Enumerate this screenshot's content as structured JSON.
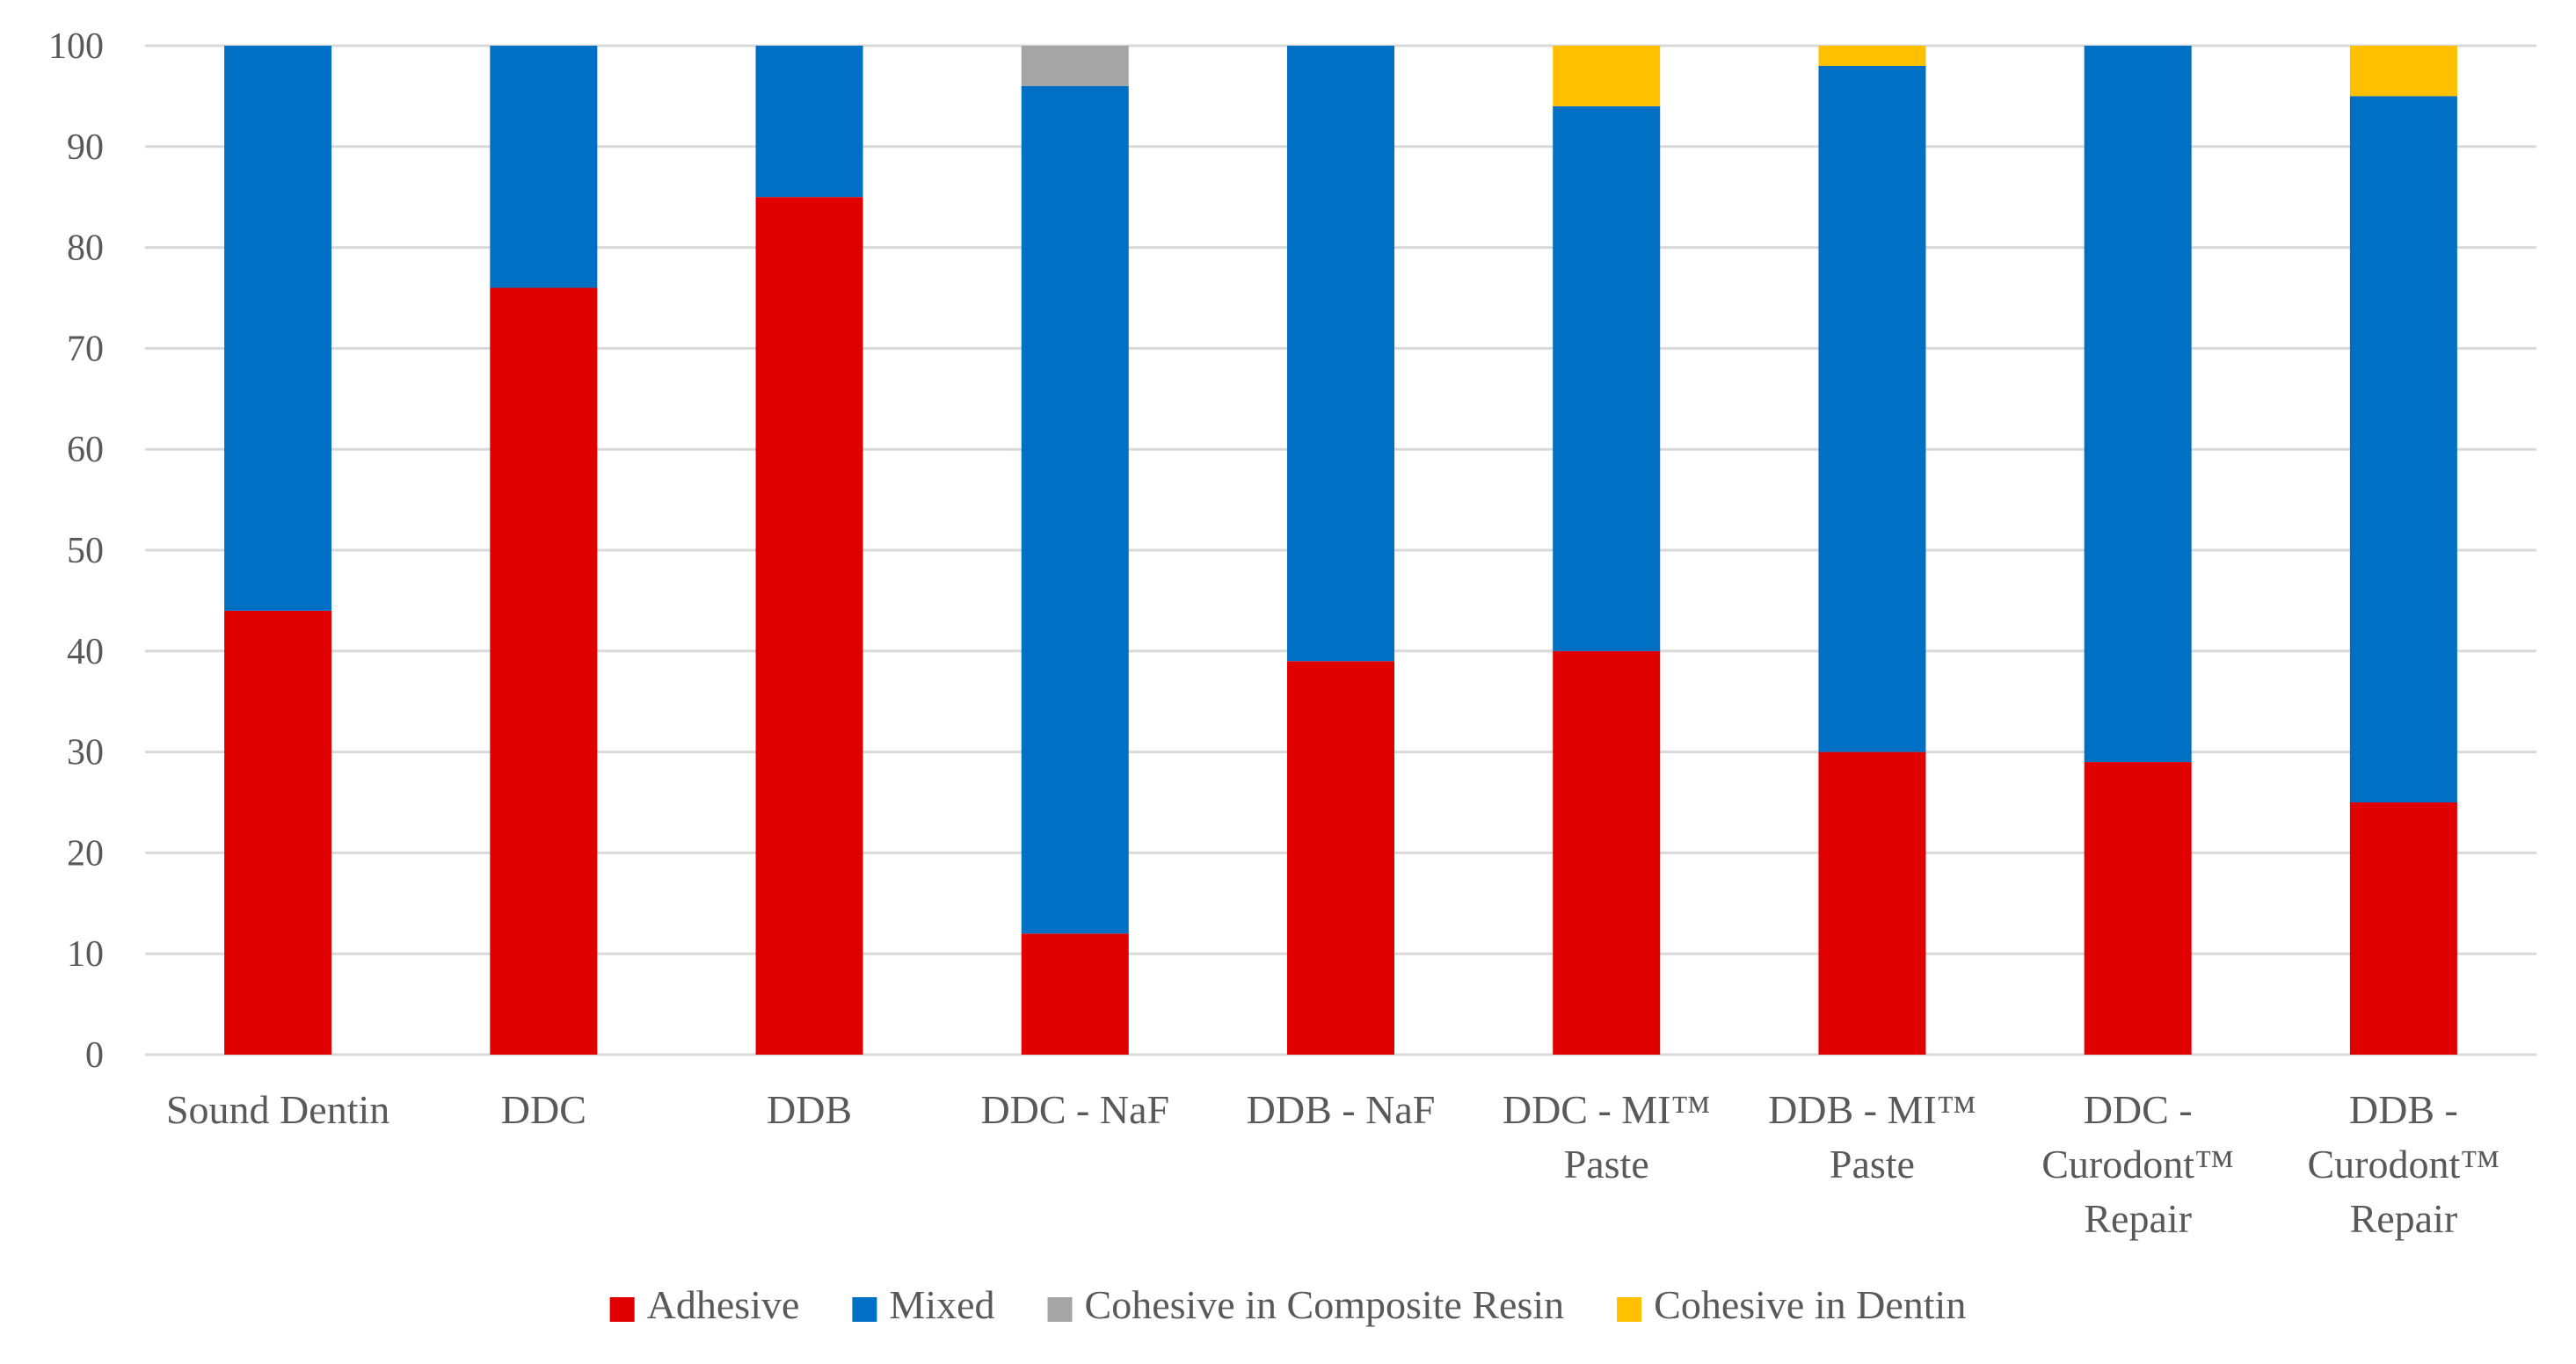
{
  "chart_data": {
    "type": "bar",
    "stacked": true,
    "title": "",
    "xlabel": "",
    "ylabel": "",
    "ylim": [
      0,
      100
    ],
    "yticks": [
      0,
      10,
      20,
      30,
      40,
      50,
      60,
      70,
      80,
      90,
      100
    ],
    "grid": true,
    "legend_position": "bottom",
    "categories": [
      [
        "Sound Dentin"
      ],
      [
        "DDC"
      ],
      [
        "DDB"
      ],
      [
        "DDC - NaF"
      ],
      [
        "DDB - NaF"
      ],
      [
        "DDC - MI™",
        "Paste"
      ],
      [
        "DDB - MI™",
        "Paste"
      ],
      [
        "DDC -",
        "Curodont™",
        "Repair"
      ],
      [
        "DDB -",
        "Curodont™",
        "Repair"
      ]
    ],
    "series": [
      {
        "name": "Adhesive",
        "color": "#e00000",
        "values": [
          44,
          76,
          85,
          12,
          39,
          40,
          30,
          29,
          25
        ]
      },
      {
        "name": "Mixed",
        "color": "#0070c4",
        "values": [
          56,
          24,
          15,
          84,
          61,
          54,
          68,
          71,
          70
        ]
      },
      {
        "name": "Cohesive in Composite Resin",
        "color": "#a5a5a5",
        "values": [
          0,
          0,
          0,
          4,
          0,
          0,
          0,
          0,
          0
        ]
      },
      {
        "name": "Cohesive in Dentin",
        "color": "#ffc000",
        "values": [
          0,
          0,
          0,
          0,
          0,
          6,
          2,
          0,
          5
        ]
      }
    ]
  }
}
